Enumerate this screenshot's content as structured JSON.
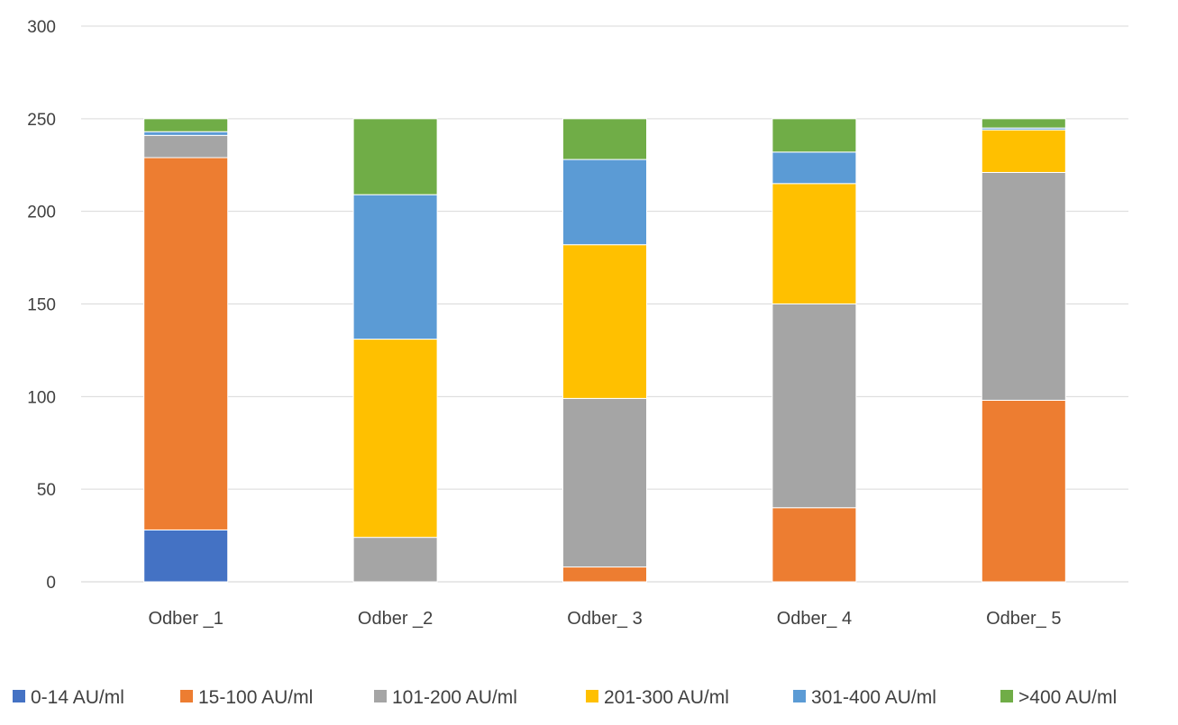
{
  "chart_data": {
    "type": "bar",
    "stacked": true,
    "title": "",
    "xlabel": "",
    "ylabel": "",
    "ylim": [
      0,
      300
    ],
    "yticks": [
      "0",
      "50",
      "100",
      "150",
      "200",
      "250",
      "300"
    ],
    "grid": true,
    "legend_position": "bottom",
    "categories": [
      "Odber _1",
      "Odber _2",
      "Odber_ 3",
      "Odber_ 4",
      "Odber_ 5"
    ],
    "series": [
      {
        "name": "0-14 AU/ml",
        "color": "#4472C4",
        "values": [
          28,
          0,
          0,
          0,
          0
        ]
      },
      {
        "name": "15-100 AU/ml",
        "color": "#ED7D31",
        "values": [
          201,
          0,
          8,
          40,
          98
        ]
      },
      {
        "name": "101-200 AU/ml",
        "color": "#A5A5A5",
        "values": [
          12,
          24,
          91,
          110,
          123
        ]
      },
      {
        "name": "201-300 AU/ml",
        "color": "#FFC000",
        "values": [
          0,
          107,
          83,
          65,
          23
        ]
      },
      {
        "name": "301-400 AU/ml",
        "color": "#5B9BD5",
        "values": [
          2,
          78,
          46,
          17,
          1
        ]
      },
      {
        "name": ">400 AU/ml",
        "color": "#70AD47",
        "values": [
          7,
          41,
          22,
          18,
          5
        ]
      }
    ]
  }
}
